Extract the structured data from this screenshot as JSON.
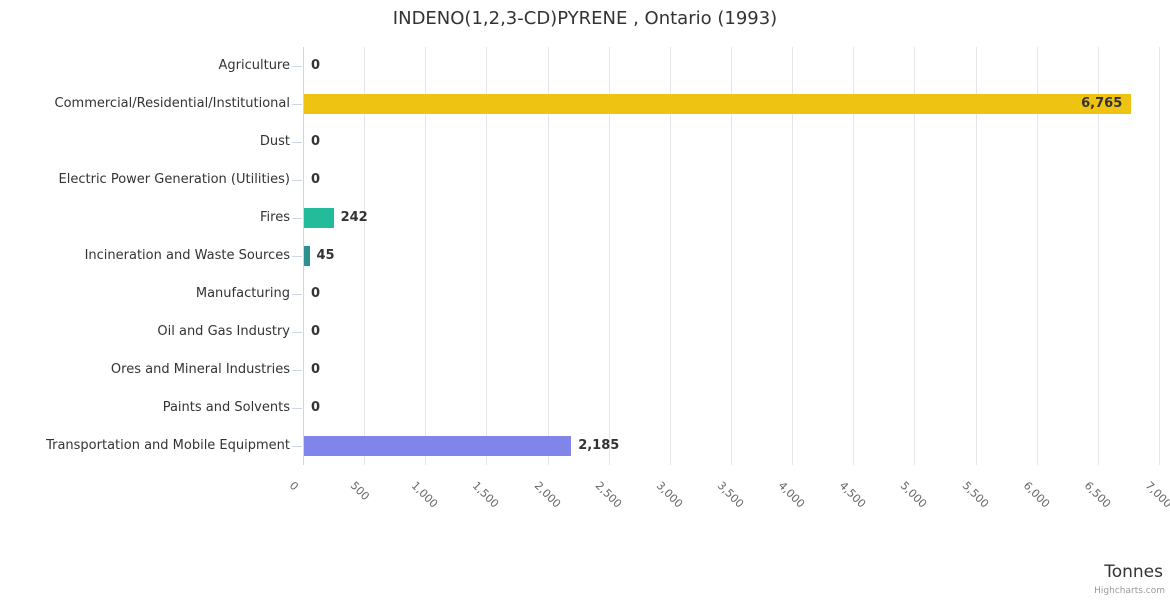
{
  "title": "INDENO(1,2,3-CD)PYRENE , Ontario (1993)",
  "credits_label": "Highcharts.com",
  "colors": {
    "title_text": "#333333",
    "label_text": "#333333",
    "tick_label_text": "#666666",
    "credits_text": "#999999",
    "gridline": "#e6e6e6",
    "axis_line": "#ccd6eb"
  },
  "chart_data": {
    "type": "bar",
    "orientation": "horizontal",
    "title": "INDENO(1,2,3-CD)PYRENE , Ontario (1993)",
    "categories": [
      "Agriculture",
      "Commercial/Residential/Institutional",
      "Dust",
      "Electric Power Generation (Utilities)",
      "Fires",
      "Incineration and Waste Sources",
      "Manufacturing",
      "Oil and Gas Industry",
      "Ores and Mineral Industries",
      "Paints and Solvents",
      "Transportation and Mobile Equipment"
    ],
    "values": [
      0,
      6765,
      0,
      0,
      242,
      45,
      0,
      0,
      0,
      0,
      2185
    ],
    "value_labels": [
      "0",
      "6,765",
      "0",
      "0",
      "242",
      "45",
      "0",
      "0",
      "0",
      "0",
      "2,185"
    ],
    "bar_colors": [
      null,
      "#eec312",
      null,
      null,
      "#23bc9b",
      "#2b908f",
      null,
      null,
      null,
      null,
      "#8085e9"
    ],
    "xlabel": "Tonnes",
    "xlim": [
      0,
      7000
    ],
    "x_tick_step": 500,
    "x_tick_labels": [
      "0",
      "500",
      "1,000",
      "1,500",
      "2,000",
      "2,500",
      "3,000",
      "3,500",
      "4,000",
      "4,500",
      "5,000",
      "5,500",
      "6,000",
      "6,500",
      "7,000"
    ],
    "grid": true,
    "legend": false
  }
}
